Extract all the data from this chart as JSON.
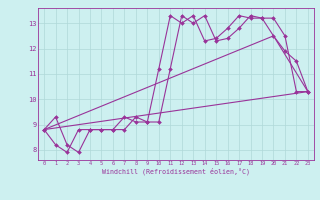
{
  "xlabel": "Windchill (Refroidissement éolien,°C)",
  "background_color": "#cdf0f0",
  "grid_color": "#b0d8d8",
  "line_color": "#993399",
  "xlim": [
    -0.5,
    23.5
  ],
  "ylim": [
    7.6,
    13.6
  ],
  "yticks": [
    8,
    9,
    10,
    11,
    12,
    13
  ],
  "xticks": [
    0,
    1,
    2,
    3,
    4,
    5,
    6,
    7,
    8,
    9,
    10,
    11,
    12,
    13,
    14,
    15,
    16,
    17,
    18,
    19,
    20,
    21,
    22,
    23
  ],
  "series1": {
    "x": [
      0,
      1,
      2,
      3,
      4,
      5,
      6,
      7,
      8,
      9,
      10,
      11,
      12,
      13,
      14,
      15,
      16,
      17,
      18,
      19,
      20,
      21,
      22,
      23
    ],
    "y": [
      8.8,
      9.3,
      8.2,
      7.9,
      8.8,
      8.8,
      8.8,
      8.8,
      9.3,
      9.1,
      9.1,
      11.2,
      13.3,
      13.0,
      13.3,
      12.3,
      12.4,
      12.8,
      13.3,
      13.2,
      12.5,
      11.9,
      11.5,
      10.3
    ],
    "marker": true
  },
  "series2": {
    "x": [
      0,
      1,
      2,
      3,
      4,
      5,
      6,
      7,
      8,
      9,
      10,
      11,
      12,
      13,
      14,
      15,
      16,
      17,
      18,
      19,
      20,
      21,
      22,
      23
    ],
    "y": [
      8.8,
      8.2,
      7.9,
      8.8,
      8.8,
      8.8,
      8.8,
      9.3,
      9.1,
      9.1,
      11.2,
      13.3,
      13.0,
      13.3,
      12.3,
      12.4,
      12.8,
      13.3,
      13.2,
      13.2,
      13.2,
      12.5,
      10.3,
      10.3
    ],
    "marker": true
  },
  "series3": {
    "x": [
      0,
      23
    ],
    "y": [
      8.8,
      10.3
    ],
    "marker": false
  },
  "series4": {
    "x": [
      0,
      20,
      23
    ],
    "y": [
      8.8,
      12.5,
      10.3
    ],
    "marker": false
  }
}
